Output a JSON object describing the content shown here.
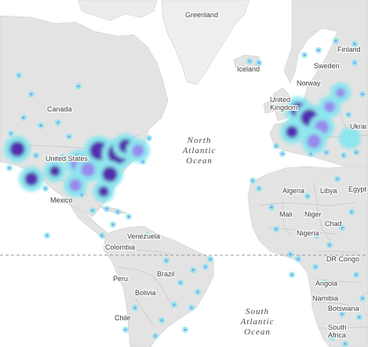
{
  "map": {
    "type": "heatmap",
    "theme": "grayscale",
    "colors": {
      "water": "#ffffff",
      "land": "#e4e4e4",
      "land_light": "#f1f1f1",
      "border": "#c8c8c8",
      "equator": "#9a9a9a",
      "heat_low": "#7fe6f0",
      "heat_mid": "#8a7bef",
      "heat_high": "#3b0fa6"
    },
    "labels": {
      "greenland": "Greenland",
      "iceland": "Iceland",
      "finland": "Finland",
      "sweden": "Sweden",
      "norway": "Norway",
      "united_kingdom": "United\nKingdom",
      "ukraine": "Ukrai",
      "canada": "Canada",
      "united_states": "United States",
      "mexico": "Mexico",
      "venezuela": "Venezuela",
      "colombia": "Colombia",
      "peru": "Peru",
      "brazil": "Brazil",
      "bolivia": "Bolivia",
      "chile": "Chile",
      "algeria": "Algeria",
      "libya": "Libya",
      "egypt": "Egypt",
      "mali": "Mali",
      "niger": "Niger",
      "chad": "Chad",
      "nigeria": "Nigeria",
      "dr_congo": "DR Congo",
      "angola": "Angola",
      "namibia": "Namibia",
      "botswana": "Botswana",
      "south_africa": "South\nAfrica",
      "north_atlantic": "North\nAtlantic\nOcean",
      "south_atlantic": "South\nAtlantic\nOcean"
    }
  }
}
